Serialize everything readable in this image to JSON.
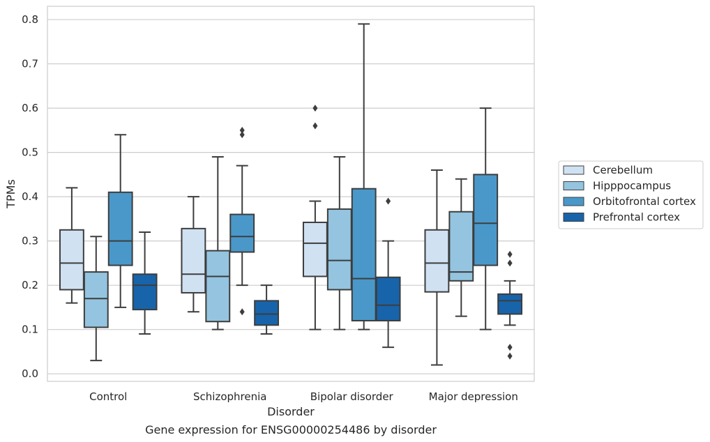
{
  "caption": "Gene expression for ENSG00000254486 by disorder",
  "chart_data": {
    "type": "box",
    "xlabel": "Disorder",
    "ylabel": "TPMs",
    "ylim": [
      -0.017,
      0.83
    ],
    "yticks": [
      "0.0",
      "0.1",
      "0.2",
      "0.3",
      "0.4",
      "0.5",
      "0.6",
      "0.7",
      "0.8"
    ],
    "grid": true,
    "legend_position": "right",
    "categories": [
      "Control",
      "Schizophrenia",
      "Bipolar disorder",
      "Major depression"
    ],
    "series": [
      {
        "name": "Cerebellum",
        "color": "#d0e1f2",
        "boxes": [
          {
            "whisker_low": 0.16,
            "q1": 0.19,
            "median": 0.25,
            "q3": 0.325,
            "whisker_high": 0.42,
            "outliers": []
          },
          {
            "whisker_low": 0.14,
            "q1": 0.183,
            "median": 0.225,
            "q3": 0.328,
            "whisker_high": 0.4,
            "outliers": []
          },
          {
            "whisker_low": 0.1,
            "q1": 0.22,
            "median": 0.295,
            "q3": 0.342,
            "whisker_high": 0.39,
            "outliers": [
              0.56,
              0.6
            ]
          },
          {
            "whisker_low": 0.02,
            "q1": 0.185,
            "median": 0.25,
            "q3": 0.325,
            "whisker_high": 0.46,
            "outliers": []
          }
        ]
      },
      {
        "name": "Hipppocampus",
        "color": "#94c4df",
        "boxes": [
          {
            "whisker_low": 0.03,
            "q1": 0.105,
            "median": 0.17,
            "q3": 0.23,
            "whisker_high": 0.31,
            "outliers": []
          },
          {
            "whisker_low": 0.1,
            "q1": 0.118,
            "median": 0.22,
            "q3": 0.278,
            "whisker_high": 0.49,
            "outliers": []
          },
          {
            "whisker_low": 0.1,
            "q1": 0.19,
            "median": 0.256,
            "q3": 0.372,
            "whisker_high": 0.49,
            "outliers": []
          },
          {
            "whisker_low": 0.13,
            "q1": 0.21,
            "median": 0.23,
            "q3": 0.366,
            "whisker_high": 0.44,
            "outliers": []
          }
        ]
      },
      {
        "name": "Orbitofrontal cortex",
        "color": "#4a98c9",
        "boxes": [
          {
            "whisker_low": 0.15,
            "q1": 0.245,
            "median": 0.3,
            "q3": 0.41,
            "whisker_high": 0.54,
            "outliers": []
          },
          {
            "whisker_low": 0.2,
            "q1": 0.275,
            "median": 0.31,
            "q3": 0.36,
            "whisker_high": 0.47,
            "outliers": [
              0.14,
              0.54,
              0.55
            ]
          },
          {
            "whisker_low": 0.1,
            "q1": 0.12,
            "median": 0.215,
            "q3": 0.418,
            "whisker_high": 0.79,
            "outliers": []
          },
          {
            "whisker_low": 0.1,
            "q1": 0.245,
            "median": 0.34,
            "q3": 0.45,
            "whisker_high": 0.6,
            "outliers": []
          }
        ]
      },
      {
        "name": "Prefrontal cortex",
        "color": "#1764ab",
        "boxes": [
          {
            "whisker_low": 0.09,
            "q1": 0.145,
            "median": 0.2,
            "q3": 0.225,
            "whisker_high": 0.32,
            "outliers": []
          },
          {
            "whisker_low": 0.09,
            "q1": 0.11,
            "median": 0.135,
            "q3": 0.165,
            "whisker_high": 0.2,
            "outliers": []
          },
          {
            "whisker_low": 0.06,
            "q1": 0.12,
            "median": 0.155,
            "q3": 0.218,
            "whisker_high": 0.3,
            "outliers": [
              0.39
            ]
          },
          {
            "whisker_low": 0.11,
            "q1": 0.135,
            "median": 0.165,
            "q3": 0.18,
            "whisker_high": 0.21,
            "outliers": [
              0.04,
              0.06,
              0.25,
              0.27
            ]
          }
        ]
      }
    ]
  }
}
